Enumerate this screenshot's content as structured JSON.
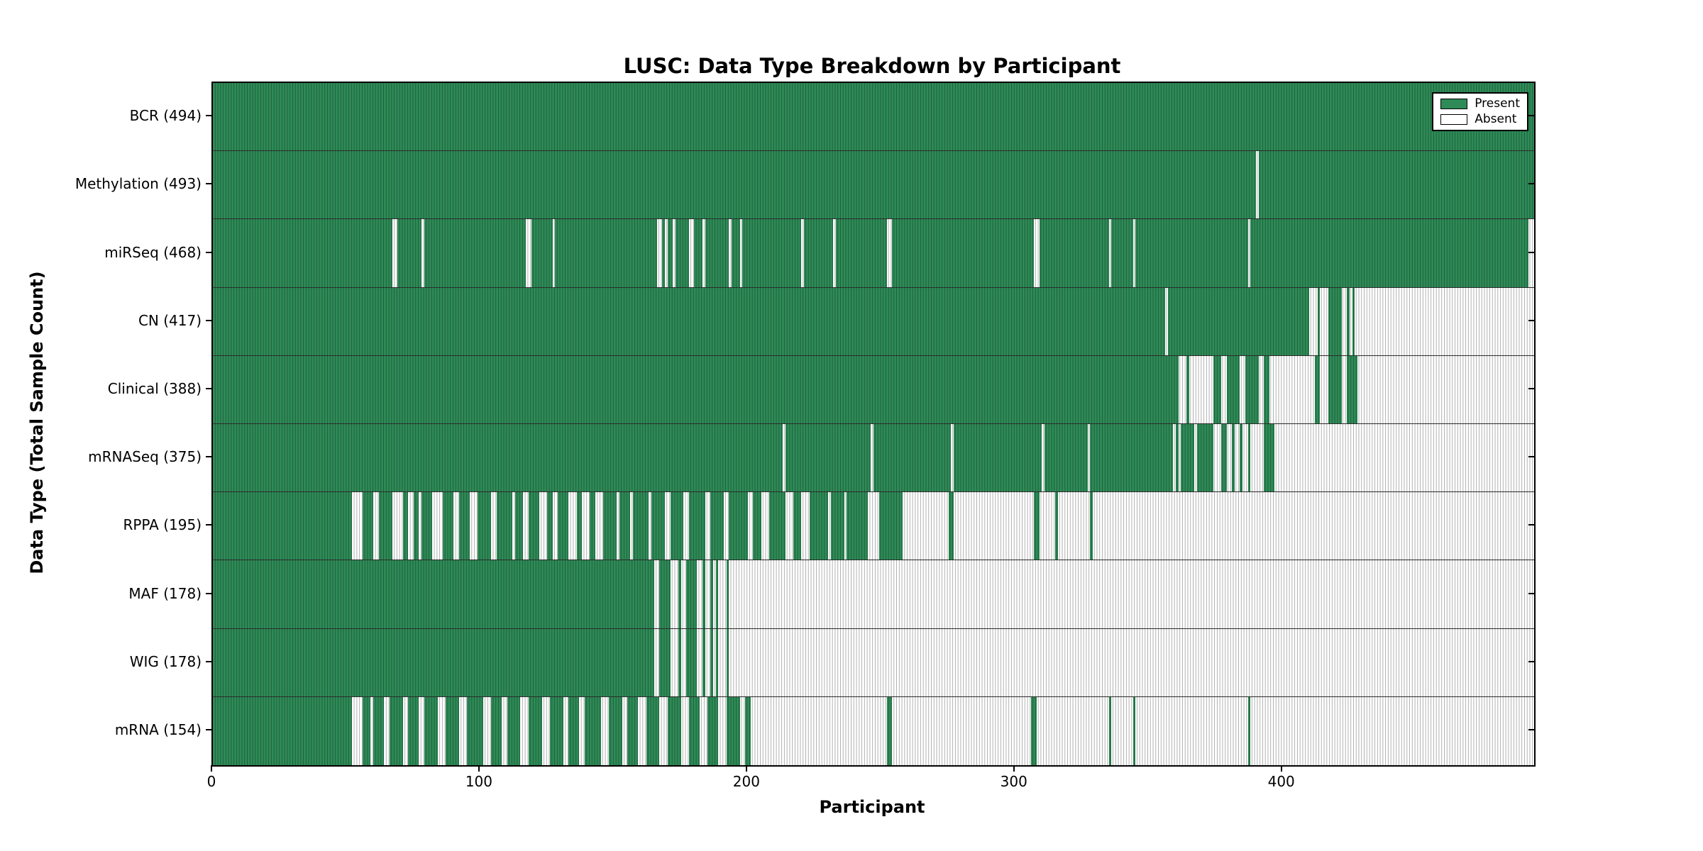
{
  "chart_data": {
    "type": "heatmap",
    "title": "LUSC: Data Type Breakdown by Participant",
    "xlabel": "Participant",
    "ylabel": "Data Type (Total Sample Count)",
    "x_ticks": [
      0,
      100,
      200,
      300,
      400
    ],
    "x_max": 494,
    "grid": false,
    "legend": {
      "position": "upper right",
      "present_label": "Present",
      "absent_label": "Absent"
    },
    "colors": {
      "present": "#2e8b57",
      "absent": "#ffffff"
    },
    "rows": [
      {
        "name": "bcr",
        "label": "BCR (494)",
        "data_type": "BCR",
        "count": 494,
        "present_ranges": [
          [
            0,
            494
          ]
        ]
      },
      {
        "name": "methylation",
        "label": "Methylation (493)",
        "data_type": "Methylation",
        "count": 493,
        "present_ranges": [
          [
            0,
            390
          ],
          [
            391,
            494
          ]
        ]
      },
      {
        "name": "mirseq",
        "label": "miRSeq (468)",
        "data_type": "miRSeq",
        "count": 468,
        "present_ranges": [
          [
            0,
            67
          ],
          [
            69,
            78
          ],
          [
            79,
            117
          ],
          [
            119,
            127
          ],
          [
            128,
            166
          ],
          [
            168,
            169
          ],
          [
            170,
            172
          ],
          [
            173,
            178
          ],
          [
            180,
            183
          ],
          [
            184,
            193
          ],
          [
            194,
            197
          ],
          [
            198,
            220
          ],
          [
            221,
            232
          ],
          [
            233,
            252
          ],
          [
            254,
            307
          ],
          [
            309,
            335
          ],
          [
            336,
            344
          ],
          [
            345,
            387
          ],
          [
            388,
            492
          ]
        ]
      },
      {
        "name": "cn",
        "label": "CN (417)",
        "data_type": "CN",
        "count": 417,
        "present_ranges": [
          [
            0,
            356
          ],
          [
            357,
            410
          ],
          [
            413,
            414
          ],
          [
            417,
            422
          ],
          [
            424,
            425
          ],
          [
            426,
            427
          ]
        ]
      },
      {
        "name": "clinical",
        "label": "Clinical (388)",
        "data_type": "Clinical",
        "count": 388,
        "present_ranges": [
          [
            0,
            361
          ],
          [
            364,
            365
          ],
          [
            374,
            377
          ],
          [
            379,
            384
          ],
          [
            386,
            391
          ],
          [
            393,
            395
          ],
          [
            412,
            414
          ],
          [
            417,
            422
          ],
          [
            424,
            428
          ]
        ]
      },
      {
        "name": "mrnaseq",
        "label": "mRNASeq (375)",
        "data_type": "mRNASeq",
        "count": 375,
        "present_ranges": [
          [
            0,
            213
          ],
          [
            214,
            246
          ],
          [
            247,
            276
          ],
          [
            277,
            310
          ],
          [
            311,
            327
          ],
          [
            328,
            359
          ],
          [
            360,
            361
          ],
          [
            362,
            367
          ],
          [
            368,
            374
          ],
          [
            377,
            379
          ],
          [
            381,
            382
          ],
          [
            384,
            385
          ],
          [
            387,
            388
          ],
          [
            393,
            397
          ]
        ]
      },
      {
        "name": "rppa",
        "label": "RPPA (195)",
        "data_type": "RPPA",
        "count": 195,
        "present_ranges": [
          [
            0,
            52
          ],
          [
            56,
            60
          ],
          [
            62,
            67
          ],
          [
            71,
            73
          ],
          [
            75,
            77
          ],
          [
            78,
            82
          ],
          [
            86,
            90
          ],
          [
            92,
            96
          ],
          [
            99,
            104
          ],
          [
            106,
            112
          ],
          [
            113,
            116
          ],
          [
            118,
            122
          ],
          [
            125,
            127
          ],
          [
            129,
            133
          ],
          [
            136,
            138
          ],
          [
            141,
            143
          ],
          [
            146,
            151
          ],
          [
            152,
            156
          ],
          [
            157,
            163
          ],
          [
            164,
            169
          ],
          [
            171,
            176
          ],
          [
            178,
            184
          ],
          [
            186,
            191
          ],
          [
            193,
            200
          ],
          [
            202,
            205
          ],
          [
            208,
            214
          ],
          [
            217,
            220
          ],
          [
            223,
            230
          ],
          [
            231,
            236
          ],
          [
            237,
            245
          ],
          [
            249,
            258
          ],
          [
            275,
            277
          ],
          [
            307,
            309
          ],
          [
            315,
            316
          ],
          [
            328,
            329
          ]
        ]
      },
      {
        "name": "maf",
        "label": "MAF (178)",
        "data_type": "MAF",
        "count": 178,
        "present_ranges": [
          [
            0,
            165
          ],
          [
            167,
            171
          ],
          [
            174,
            175
          ],
          [
            177,
            181
          ],
          [
            183,
            184
          ],
          [
            186,
            187
          ],
          [
            188,
            189
          ],
          [
            192,
            193
          ]
        ]
      },
      {
        "name": "wig",
        "label": "WIG (178)",
        "data_type": "WIG",
        "count": 178,
        "present_ranges": [
          [
            0,
            165
          ],
          [
            167,
            171
          ],
          [
            174,
            175
          ],
          [
            177,
            181
          ],
          [
            183,
            184
          ],
          [
            186,
            187
          ],
          [
            188,
            189
          ],
          [
            192,
            193
          ]
        ]
      },
      {
        "name": "mrna",
        "label": "mRNA (154)",
        "data_type": "mRNA",
        "count": 154,
        "present_ranges": [
          [
            0,
            52
          ],
          [
            56,
            59
          ],
          [
            60,
            64
          ],
          [
            66,
            71
          ],
          [
            73,
            77
          ],
          [
            79,
            84
          ],
          [
            87,
            92
          ],
          [
            95,
            101
          ],
          [
            104,
            108
          ],
          [
            110,
            115
          ],
          [
            118,
            123
          ],
          [
            126,
            131
          ],
          [
            133,
            137
          ],
          [
            139,
            145
          ],
          [
            148,
            153
          ],
          [
            155,
            159
          ],
          [
            162,
            167
          ],
          [
            170,
            175
          ],
          [
            178,
            182
          ],
          [
            185,
            189
          ],
          [
            192,
            197
          ],
          [
            199,
            201
          ],
          [
            252,
            254
          ],
          [
            306,
            308
          ],
          [
            335,
            336
          ],
          [
            344,
            345
          ],
          [
            387,
            388
          ]
        ]
      }
    ]
  }
}
